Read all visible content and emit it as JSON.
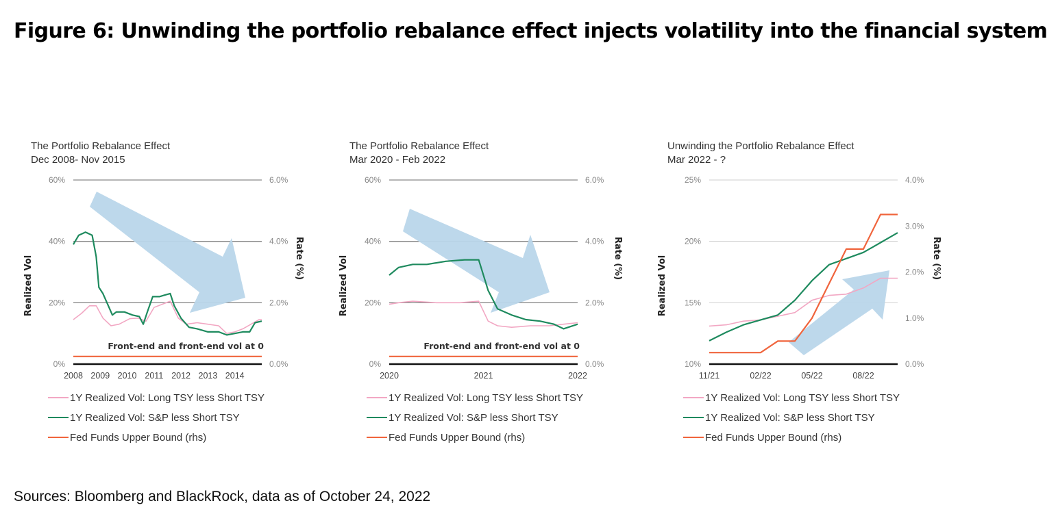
{
  "figure": {
    "title": "Figure 6: Unwinding the portfolio rebalance effect injects volatility into the financial system",
    "sources": "Sources: Bloomberg and BlackRock, data as of October 24, 2022"
  },
  "colors": {
    "long_tsy": "#f2a7c3",
    "sp": "#1e8a5e",
    "fed": "#f0643c",
    "arrow": "#b9d6ea",
    "zero_line": "#111111",
    "grid": "#999999"
  },
  "chart_data": [
    {
      "type": "line",
      "title": "The Portfolio Rebalance Effect",
      "subtitle": "Dec 2008- Nov 2015",
      "ylabel": "Realized Vol",
      "y2label": "Rate (%)",
      "ylim": [
        0,
        60
      ],
      "y2lim": [
        0,
        6
      ],
      "yticks": [
        "0%",
        "20%",
        "40%",
        "60%"
      ],
      "y2ticks": [
        "0.0%",
        "2.0%",
        "4.0%",
        "6.0%"
      ],
      "xlim": [
        2008,
        2015
      ],
      "xticks": [
        "2008",
        "2009",
        "2010",
        "2011",
        "2012",
        "2013",
        "2014"
      ],
      "grid": true,
      "annotation": "Front-end and front-end vol at 0",
      "arrow": "down",
      "series": [
        {
          "name": "1Y Realized Vol: Long TSY less Short TSY",
          "color_key": "long_tsy",
          "axis": "left",
          "x": [
            2008.0,
            2008.3,
            2008.6,
            2008.85,
            2009.1,
            2009.4,
            2009.7,
            2010.1,
            2010.4,
            2010.7,
            2011.0,
            2011.3,
            2011.6,
            2011.9,
            2012.2,
            2012.6,
            2013.0,
            2013.4,
            2013.7,
            2014.0,
            2014.3,
            2014.6,
            2014.9,
            2015.0
          ],
          "values": [
            14.5,
            16.5,
            19,
            19,
            15,
            12.5,
            13,
            14.8,
            15,
            14,
            18.5,
            19.5,
            20.5,
            15,
            13,
            13.5,
            13,
            12.5,
            10,
            10.5,
            11.5,
            13,
            14.5,
            14.5
          ]
        },
        {
          "name": "1Y Realized Vol: S&P less Short TSY",
          "color_key": "sp",
          "axis": "left",
          "x": [
            2008.0,
            2008.2,
            2008.45,
            2008.7,
            2008.85,
            2008.95,
            2009.1,
            2009.3,
            2009.45,
            2009.6,
            2009.9,
            2010.2,
            2010.45,
            2010.6,
            2010.75,
            2010.95,
            2011.2,
            2011.4,
            2011.6,
            2011.75,
            2012.0,
            2012.3,
            2012.6,
            2013.0,
            2013.4,
            2013.7,
            2014.0,
            2014.3,
            2014.55,
            2014.75,
            2015.0
          ],
          "values": [
            39,
            42,
            43,
            42,
            35,
            25,
            23,
            19,
            16,
            17,
            17,
            16,
            15.5,
            13,
            17,
            22,
            22,
            22.5,
            23,
            19,
            15,
            12,
            11.5,
            10.5,
            10.5,
            9.5,
            10,
            10.5,
            10.5,
            13.5,
            14
          ]
        },
        {
          "name": "Fed Funds Upper Bound (rhs)",
          "color_key": "fed",
          "axis": "right",
          "x": [
            2008.0,
            2015.0
          ],
          "values": [
            0.25,
            0.25
          ]
        }
      ]
    },
    {
      "type": "line",
      "title": "The Portfolio Rebalance Effect",
      "subtitle": "Mar 2020 - Feb 2022",
      "ylabel": "Realized Vol",
      "y2label": "Rate (%)",
      "ylim": [
        0,
        60
      ],
      "y2lim": [
        0,
        6
      ],
      "yticks": [
        "0%",
        "20%",
        "40%",
        "60%"
      ],
      "y2ticks": [
        "0.0%",
        "2.0%",
        "4.0%",
        "6.0%"
      ],
      "xlim": [
        2020,
        2022
      ],
      "xticks": [
        "2020",
        "2021",
        "2022"
      ],
      "grid": true,
      "annotation": "Front-end and front-end vol at 0",
      "arrow": "down",
      "series": [
        {
          "name": "1Y Realized Vol: Long TSY less Short TSY",
          "color_key": "long_tsy",
          "axis": "left",
          "x": [
            2020.0,
            2020.1,
            2020.25,
            2020.5,
            2020.75,
            2020.95,
            2021.05,
            2021.15,
            2021.3,
            2021.5,
            2021.7,
            2021.85,
            2022.0
          ],
          "values": [
            19.5,
            20,
            20.5,
            20,
            20,
            20.5,
            14,
            12.5,
            12,
            12.5,
            12.5,
            13,
            13.5
          ]
        },
        {
          "name": "1Y Realized Vol: S&P less Short TSY",
          "color_key": "sp",
          "axis": "left",
          "x": [
            2020.0,
            2020.1,
            2020.25,
            2020.4,
            2020.6,
            2020.8,
            2020.95,
            2021.05,
            2021.15,
            2021.3,
            2021.45,
            2021.6,
            2021.75,
            2021.85,
            2022.0
          ],
          "values": [
            29,
            31.5,
            32.5,
            32.5,
            33.5,
            34,
            34,
            24,
            18,
            16,
            14.5,
            14,
            13,
            11.5,
            13
          ]
        },
        {
          "name": "Fed Funds Upper Bound (rhs)",
          "color_key": "fed",
          "axis": "right",
          "x": [
            2020.0,
            2022.0
          ],
          "values": [
            0.25,
            0.25
          ]
        }
      ]
    },
    {
      "type": "line",
      "title": "Unwinding the Portfolio Rebalance Effect",
      "subtitle": "Mar 2022 - ?",
      "ylabel": "Realized Vol",
      "y2label": "Rate (%)",
      "ylim": [
        10,
        25
      ],
      "y2lim": [
        0,
        4
      ],
      "yticks": [
        "10%",
        "15%",
        "20%",
        "25%"
      ],
      "y2ticks": [
        "0.0%",
        "1.0%",
        "2.0%",
        "3.0%",
        "4.0%"
      ],
      "xlim": [
        0,
        11
      ],
      "xticks": [
        "11/21",
        "02/22",
        "05/22",
        "08/22"
      ],
      "xtick_positions": [
        0,
        3,
        6,
        9
      ],
      "grid": true,
      "annotation": "",
      "arrow": "up",
      "series": [
        {
          "name": "1Y Realized Vol: Long TSY less Short TSY",
          "color_key": "long_tsy",
          "axis": "left",
          "x": [
            0,
            1,
            2,
            3,
            4,
            5,
            6,
            7,
            8,
            9,
            10,
            11
          ],
          "values": [
            13.1,
            13.2,
            13.5,
            13.6,
            13.9,
            14.2,
            15.2,
            15.6,
            15.7,
            16.2,
            17.0,
            17.0
          ]
        },
        {
          "name": "1Y Realized Vol: S&P less Short TSY",
          "color_key": "sp",
          "axis": "left",
          "x": [
            0,
            1,
            2,
            3,
            4,
            5,
            6,
            7,
            8,
            9,
            10,
            11
          ],
          "values": [
            11.9,
            12.6,
            13.2,
            13.6,
            14.0,
            15.2,
            16.8,
            18.1,
            18.6,
            19.1,
            19.9,
            20.7
          ]
        },
        {
          "name": "Fed Funds Upper Bound (rhs)",
          "color_key": "fed",
          "axis": "right",
          "x": [
            0,
            1,
            2,
            3,
            4,
            5,
            6,
            7,
            8,
            9,
            10,
            11
          ],
          "values": [
            0.25,
            0.25,
            0.25,
            0.25,
            0.5,
            0.5,
            1.0,
            1.75,
            2.5,
            2.5,
            3.25,
            3.25
          ]
        }
      ]
    }
  ]
}
